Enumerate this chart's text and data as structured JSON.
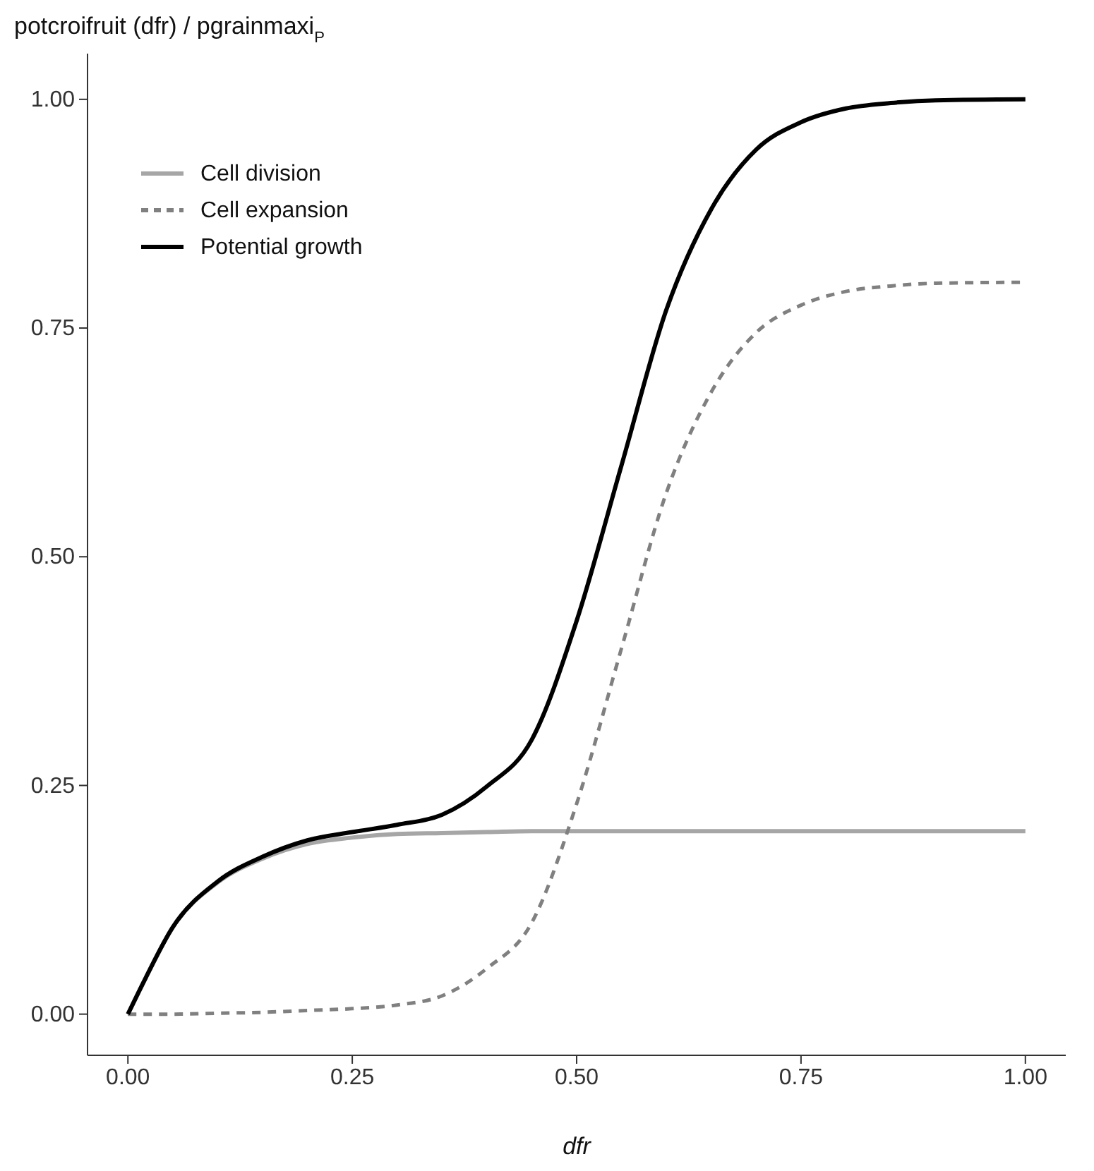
{
  "chart_data": {
    "type": "line",
    "ylabel": "potcroifruit (dfr) / pgrainmaxi$_{P}$",
    "xlabel": "dfr",
    "x": [
      0,
      0.02,
      0.05,
      0.1,
      0.15,
      0.2,
      0.25,
      0.3,
      0.35,
      0.4,
      0.45,
      0.5,
      0.55,
      0.6,
      0.65,
      0.7,
      0.75,
      0.8,
      0.85,
      0.9,
      1
    ],
    "series": [
      {
        "name": "Cell division",
        "color": "#a6a6a6",
        "line_style": "solid",
        "values": [
          0,
          0.04,
          0.095,
          0.144,
          0.17,
          0.186,
          0.193,
          0.197,
          0.198,
          0.199,
          0.2,
          0.2,
          0.2,
          0.2,
          0.2,
          0.2,
          0.2,
          0.2,
          0.2,
          0.2,
          0.2
        ]
      },
      {
        "name": "Cell expansion",
        "color": "#808080",
        "line_style": "dashed",
        "values": [
          0,
          0,
          0,
          0.001,
          0.002,
          0.004,
          0.006,
          0.01,
          0.02,
          0.05,
          0.1,
          0.23,
          0.4,
          0.57,
          0.68,
          0.745,
          0.775,
          0.79,
          0.796,
          0.799,
          0.8
        ]
      },
      {
        "name": "Potential growth",
        "color": "#000000",
        "line_style": "solid",
        "values": [
          0,
          0.04,
          0.095,
          0.145,
          0.172,
          0.19,
          0.199,
          0.207,
          0.218,
          0.249,
          0.3,
          0.43,
          0.6,
          0.77,
          0.88,
          0.945,
          0.975,
          0.99,
          0.996,
          0.999,
          1
        ]
      }
    ],
    "xlim": [
      -0.045,
      1.045
    ],
    "ylim": [
      -0.045,
      1.05
    ],
    "xticks": [
      {
        "value": 0,
        "label": "0.00"
      },
      {
        "value": 0.25,
        "label": "0.25"
      },
      {
        "value": 0.5,
        "label": "0.50"
      },
      {
        "value": 0.75,
        "label": "0.75"
      },
      {
        "value": 1,
        "label": "1.00"
      }
    ],
    "yticks": [
      {
        "value": 0,
        "label": "0.00"
      },
      {
        "value": 0.25,
        "label": "0.25"
      },
      {
        "value": 0.5,
        "label": "0.50"
      },
      {
        "value": 0.75,
        "label": "0.75"
      },
      {
        "value": 1,
        "label": "1.00"
      }
    ],
    "grid": false,
    "legend": "top left"
  }
}
